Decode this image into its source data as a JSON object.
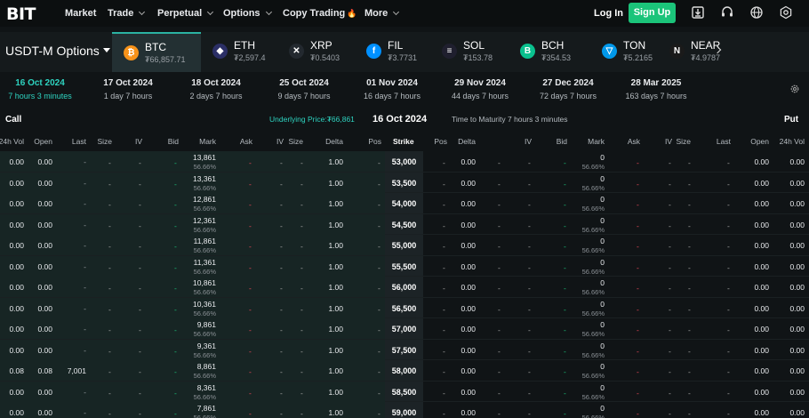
{
  "nav": {
    "logo": "BIT",
    "items": [
      {
        "label": "Market",
        "has_menu": false
      },
      {
        "label": "Trade",
        "has_menu": true
      },
      {
        "label": "Perpetual",
        "has_menu": true
      },
      {
        "label": "Options",
        "has_menu": true
      },
      {
        "label": "Copy Trading",
        "has_menu": false,
        "badge": "fire-icon"
      },
      {
        "label": "More",
        "has_menu": true
      }
    ],
    "login": "Log In",
    "signup": "Sign Up",
    "icons": [
      "download-icon",
      "headset-icon",
      "globe-icon",
      "settings-icon"
    ]
  },
  "assets": {
    "market": "USDT-M Options",
    "tabs": [
      {
        "name": "BTC",
        "price": "₮66,857.71",
        "color": "#f7931a",
        "glyph": "₿",
        "active": true
      },
      {
        "name": "ETH",
        "price": "₮2,597.4",
        "color": "#2b2f66",
        "glyph": "◆",
        "active": false
      },
      {
        "name": "XRP",
        "price": "₮0.5403",
        "color": "#23292f",
        "glyph": "✕",
        "active": false
      },
      {
        "name": "FIL",
        "price": "₮3.7731",
        "color": "#0090ff",
        "glyph": "f",
        "active": false
      },
      {
        "name": "SOL",
        "price": "₮153.78",
        "color": "#1f1f2e",
        "glyph": "≡",
        "active": false
      },
      {
        "name": "BCH",
        "price": "₮354.53",
        "color": "#0ac18e",
        "glyph": "B",
        "active": false
      },
      {
        "name": "TON",
        "price": "₮5.2165",
        "color": "#0098ea",
        "glyph": "▽",
        "active": false
      },
      {
        "name": "NEAR",
        "price": "₮4.9787",
        "color": "#1a1a1a",
        "glyph": "N",
        "active": false
      }
    ]
  },
  "expiries": [
    {
      "date": "16 Oct 2024",
      "time": "7 hours 3 minutes",
      "active": true
    },
    {
      "date": "17 Oct 2024",
      "time": "1 day 7 hours",
      "active": false
    },
    {
      "date": "18 Oct 2024",
      "time": "2 days 7 hours",
      "active": false
    },
    {
      "date": "25 Oct 2024",
      "time": "9 days 7 hours",
      "active": false
    },
    {
      "date": "01 Nov 2024",
      "time": "16 days 7 hours",
      "active": false
    },
    {
      "date": "29 Nov 2024",
      "time": "44 days 7 hours",
      "active": false
    },
    {
      "date": "27 Dec 2024",
      "time": "72 days 7 hours",
      "active": false
    },
    {
      "date": "28 Mar 2025",
      "time": "163 days 7 hours",
      "active": false
    }
  ],
  "info": {
    "call": "Call",
    "put": "Put",
    "underlying": "Underlying Price:₮66,861",
    "date": "16 Oct 2024",
    "ttm": "Time to Maturity 7 hours 3 minutes"
  },
  "columns": {
    "call": [
      "24h Vol",
      "Open",
      "Last",
      "Size",
      "IV",
      "Bid",
      "Mark",
      "Ask",
      "IV",
      "Size",
      "Delta",
      "Pos"
    ],
    "strike": "Strike",
    "put": [
      "Pos",
      "Delta",
      "IV",
      "Bid",
      "Mark",
      "Ask",
      "IV",
      "Size",
      "Last",
      "Open",
      "24h Vol"
    ]
  },
  "rows": [
    {
      "strike": "53,000",
      "call_vol": "0.00",
      "call_open": "0.00",
      "call_last": "-",
      "call_mark": "13,861",
      "call_iv": "56.66%",
      "call_delta": "1.00",
      "put_delta": "0.00",
      "put_mark": "0",
      "put_iv": "56.66%",
      "put_open": "0.00",
      "put_vol": "0.00"
    },
    {
      "strike": "53,500",
      "call_vol": "0.00",
      "call_open": "0.00",
      "call_last": "-",
      "call_mark": "13,361",
      "call_iv": "56.66%",
      "call_delta": "1.00",
      "put_delta": "0.00",
      "put_mark": "0",
      "put_iv": "56.66%",
      "put_open": "0.00",
      "put_vol": "0.00"
    },
    {
      "strike": "54,000",
      "call_vol": "0.00",
      "call_open": "0.00",
      "call_last": "-",
      "call_mark": "12,861",
      "call_iv": "56.66%",
      "call_delta": "1.00",
      "put_delta": "0.00",
      "put_mark": "0",
      "put_iv": "56.66%",
      "put_open": "0.00",
      "put_vol": "0.00"
    },
    {
      "strike": "54,500",
      "call_vol": "0.00",
      "call_open": "0.00",
      "call_last": "-",
      "call_mark": "12,361",
      "call_iv": "56.66%",
      "call_delta": "1.00",
      "put_delta": "0.00",
      "put_mark": "0",
      "put_iv": "56.66%",
      "put_open": "0.00",
      "put_vol": "0.00"
    },
    {
      "strike": "55,000",
      "call_vol": "0.00",
      "call_open": "0.00",
      "call_last": "-",
      "call_mark": "11,861",
      "call_iv": "56.66%",
      "call_delta": "1.00",
      "put_delta": "0.00",
      "put_mark": "0",
      "put_iv": "56.66%",
      "put_open": "0.00",
      "put_vol": "0.00"
    },
    {
      "strike": "55,500",
      "call_vol": "0.00",
      "call_open": "0.00",
      "call_last": "-",
      "call_mark": "11,361",
      "call_iv": "56.66%",
      "call_delta": "1.00",
      "put_delta": "0.00",
      "put_mark": "0",
      "put_iv": "56.66%",
      "put_open": "0.00",
      "put_vol": "0.00"
    },
    {
      "strike": "56,000",
      "call_vol": "0.00",
      "call_open": "0.00",
      "call_last": "-",
      "call_mark": "10,861",
      "call_iv": "56.66%",
      "call_delta": "1.00",
      "put_delta": "0.00",
      "put_mark": "0",
      "put_iv": "56.66%",
      "put_open": "0.00",
      "put_vol": "0.00"
    },
    {
      "strike": "56,500",
      "call_vol": "0.00",
      "call_open": "0.00",
      "call_last": "-",
      "call_mark": "10,361",
      "call_iv": "56.66%",
      "call_delta": "1.00",
      "put_delta": "0.00",
      "put_mark": "0",
      "put_iv": "56.66%",
      "put_open": "0.00",
      "put_vol": "0.00"
    },
    {
      "strike": "57,000",
      "call_vol": "0.00",
      "call_open": "0.00",
      "call_last": "-",
      "call_mark": "9,861",
      "call_iv": "56.66%",
      "call_delta": "1.00",
      "put_delta": "0.00",
      "put_mark": "0",
      "put_iv": "56.66%",
      "put_open": "0.00",
      "put_vol": "0.00"
    },
    {
      "strike": "57,500",
      "call_vol": "0.00",
      "call_open": "0.00",
      "call_last": "-",
      "call_mark": "9,361",
      "call_iv": "56.66%",
      "call_delta": "1.00",
      "put_delta": "0.00",
      "put_mark": "0",
      "put_iv": "56.66%",
      "put_open": "0.00",
      "put_vol": "0.00"
    },
    {
      "strike": "58,000",
      "call_vol": "0.08",
      "call_open": "0.08",
      "call_last": "7,001",
      "call_mark": "8,861",
      "call_iv": "56.66%",
      "call_delta": "1.00",
      "put_delta": "0.00",
      "put_mark": "0",
      "put_iv": "56.66%",
      "put_open": "0.00",
      "put_vol": "0.00"
    },
    {
      "strike": "58,500",
      "call_vol": "0.00",
      "call_open": "0.00",
      "call_last": "-",
      "call_mark": "8,361",
      "call_iv": "56.66%",
      "call_delta": "1.00",
      "put_delta": "0.00",
      "put_mark": "0",
      "put_iv": "56.66%",
      "put_open": "0.00",
      "put_vol": "0.00"
    },
    {
      "strike": "59,000",
      "call_vol": "0.00",
      "call_open": "0.00",
      "call_last": "-",
      "call_mark": "7,861",
      "call_iv": "56.66%",
      "call_delta": "1.00",
      "put_delta": "0.00",
      "put_mark": "0",
      "put_iv": "56.66%",
      "put_open": "0.00",
      "put_vol": "0.00"
    }
  ],
  "colors": {
    "accent": "#2ed3c0",
    "signup": "#1bc47a",
    "bid": "#1bc47a",
    "ask": "#f24b5b"
  }
}
